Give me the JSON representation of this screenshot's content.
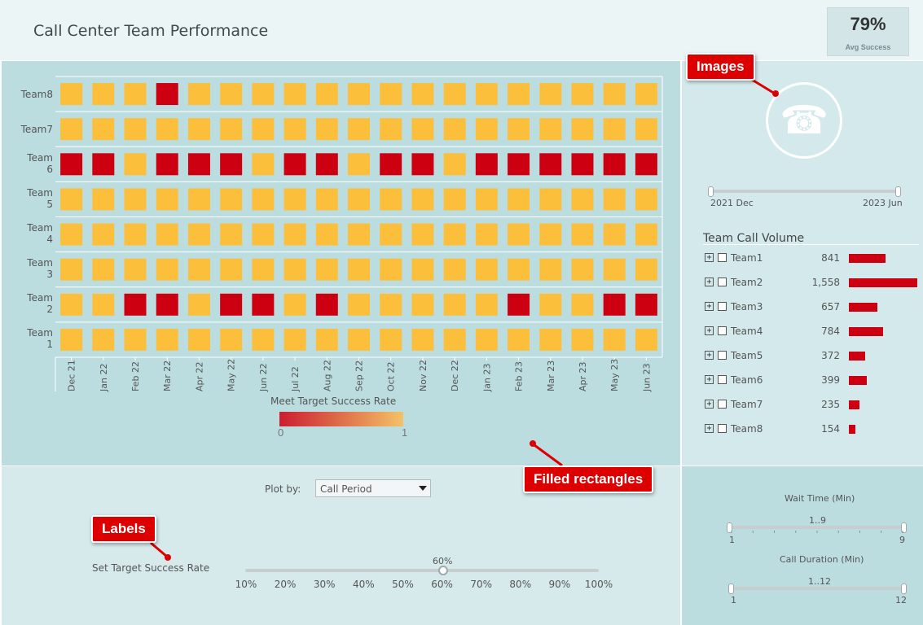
{
  "header": {
    "title": "Call Center Team Performance",
    "kpi_value": "79%",
    "kpi_label": "Avg Success"
  },
  "heatmap": {
    "teams": [
      "Team8",
      "Team7",
      "Team 6",
      "Team 5",
      "Team 4",
      "Team 3",
      "Team 2",
      "Team 1"
    ],
    "months": [
      "Dec 21",
      "Jan 22",
      "Feb 22",
      "Mar 22",
      "Apr 22",
      "May 22",
      "Jun 22",
      "Jul 22",
      "Aug 22",
      "Sep 22",
      "Oct 22",
      "Nov 22",
      "Dec 22",
      "Jan 23",
      "Feb 23",
      "Mar 23",
      "Apr 23",
      "May 23",
      "Jun 23"
    ],
    "met": [
      [
        1,
        1,
        1,
        0,
        1,
        1,
        1,
        1,
        1,
        1,
        1,
        1,
        1,
        1,
        1,
        1,
        1,
        1,
        1
      ],
      [
        1,
        1,
        1,
        1,
        1,
        1,
        1,
        1,
        1,
        1,
        1,
        1,
        1,
        1,
        1,
        1,
        1,
        1,
        1
      ],
      [
        0,
        0,
        1,
        0,
        0,
        0,
        1,
        0,
        0,
        1,
        0,
        0,
        1,
        0,
        0,
        0,
        0,
        0,
        0
      ],
      [
        1,
        1,
        1,
        1,
        1,
        1,
        1,
        1,
        1,
        1,
        1,
        1,
        1,
        1,
        1,
        1,
        1,
        1,
        1
      ],
      [
        1,
        1,
        1,
        1,
        1,
        1,
        1,
        1,
        1,
        1,
        1,
        1,
        1,
        1,
        1,
        1,
        1,
        1,
        1
      ],
      [
        1,
        1,
        1,
        1,
        1,
        1,
        1,
        1,
        1,
        1,
        1,
        1,
        1,
        1,
        1,
        1,
        1,
        1,
        1
      ],
      [
        1,
        1,
        0,
        0,
        1,
        0,
        0,
        1,
        0,
        1,
        1,
        1,
        1,
        1,
        0,
        1,
        1,
        0,
        0
      ],
      [
        1,
        1,
        1,
        1,
        1,
        1,
        1,
        1,
        1,
        1,
        1,
        1,
        1,
        1,
        1,
        1,
        1,
        1,
        1
      ]
    ],
    "met_color": "#fbbf3c",
    "missed_color": "#cc0011",
    "legend_title": "Meet Target Success Rate",
    "legend_min": "0",
    "legend_max": "1"
  },
  "date_slider": {
    "start_label": "2021 Dec",
    "end_label": "2023 Jun"
  },
  "volume": {
    "title": "Team Call Volume",
    "rows": [
      {
        "name": "Team1",
        "value_text": "841",
        "value": 841
      },
      {
        "name": "Team2",
        "value_text": "1,558",
        "value": 1558
      },
      {
        "name": "Team3",
        "value_text": "657",
        "value": 657
      },
      {
        "name": "Team4",
        "value_text": "784",
        "value": 784
      },
      {
        "name": "Team5",
        "value_text": "372",
        "value": 372
      },
      {
        "name": "Team6",
        "value_text": "399",
        "value": 399
      },
      {
        "name": "Team7",
        "value_text": "235",
        "value": 235
      },
      {
        "name": "Team8",
        "value_text": "154",
        "value": 154
      }
    ],
    "bar_color": "#cc0011"
  },
  "controls": {
    "plot_by_label": "Plot by:",
    "plot_by_value": "Call Period",
    "target_label": "Set Target Success Rate",
    "target_value": "60%",
    "target_ticks": [
      "10%",
      "20%",
      "30%",
      "40%",
      "50%",
      "60%",
      "70%",
      "80%",
      "90%",
      "100%"
    ]
  },
  "filters": {
    "wait_title": "Wait Time (Min)",
    "wait_range": "1..9",
    "wait_min": "1",
    "wait_max": "9",
    "duration_title": "Call Duration (Min)",
    "duration_range": "1..12",
    "duration_min": "1",
    "duration_max": "12"
  },
  "callouts": {
    "images": "Images",
    "labels": "Labels",
    "filled": "Filled rectangles"
  }
}
